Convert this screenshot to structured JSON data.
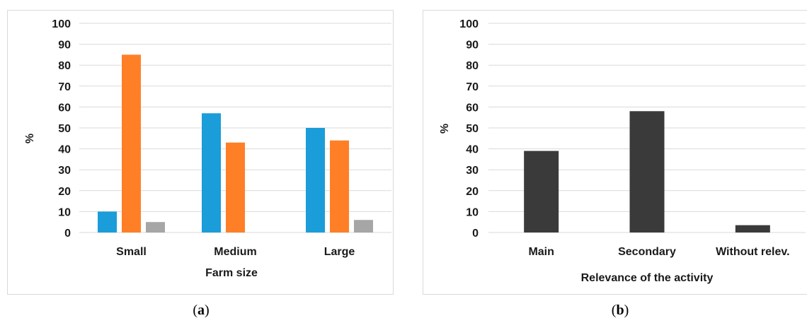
{
  "panels": [
    {
      "caption_letter": "a",
      "chart_data": {
        "type": "bar",
        "categories": [
          "Small",
          "Medium",
          "Large"
        ],
        "series": [
          {
            "color": "#1a9dd9",
            "values": [
              10,
              57,
              50
            ]
          },
          {
            "color": "#ff7f27",
            "values": [
              85,
              43,
              44
            ]
          },
          {
            "color": "#a6a6a6",
            "values": [
              5,
              0,
              6
            ]
          }
        ],
        "xlabel": "Farm size",
        "ylabel": "%",
        "ylim": [
          0,
          100
        ],
        "yticks": [
          0,
          10,
          20,
          30,
          40,
          50,
          60,
          70,
          80,
          90,
          100
        ],
        "grid": true
      }
    },
    {
      "caption_letter": "b",
      "chart_data": {
        "type": "bar",
        "categories": [
          "Main",
          "Secondary",
          "Without relev."
        ],
        "series": [
          {
            "color": "#3a3a3a",
            "values": [
              39,
              58,
              3.5
            ]
          }
        ],
        "xlabel": "Relevance of the activity",
        "ylabel": "%",
        "ylim": [
          0,
          100
        ],
        "yticks": [
          0,
          10,
          20,
          30,
          40,
          50,
          60,
          70,
          80,
          90,
          100
        ],
        "grid": true
      }
    }
  ],
  "caption_open": "(",
  "caption_close": ")"
}
